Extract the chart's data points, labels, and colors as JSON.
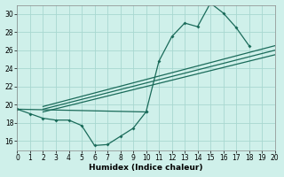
{
  "xlabel": "Humidex (Indice chaleur)",
  "bg_color": "#cff0ea",
  "grid_color": "#a8d8d0",
  "line_color": "#1a6b5a",
  "xlim": [
    0,
    20
  ],
  "ylim": [
    15,
    31
  ],
  "xticks": [
    0,
    1,
    2,
    3,
    4,
    5,
    6,
    7,
    8,
    9,
    10,
    11,
    12,
    13,
    14,
    15,
    16,
    17,
    18,
    19,
    20
  ],
  "yticks": [
    16,
    18,
    20,
    22,
    24,
    26,
    28,
    30
  ],
  "curve1_x": [
    0,
    1,
    2,
    3,
    4,
    5,
    6,
    7,
    8,
    9,
    10
  ],
  "curve1_y": [
    19.5,
    19.0,
    18.5,
    18.3,
    18.3,
    17.7,
    15.5,
    15.6,
    16.5,
    17.4,
    19.2
  ],
  "curve2_x": [
    0,
    10,
    11,
    12,
    13,
    14,
    15,
    16,
    17,
    18
  ],
  "curve2_y": [
    19.5,
    19.2,
    24.8,
    27.5,
    29.0,
    28.6,
    31.2,
    30.1,
    28.5,
    26.5
  ],
  "straight_lines": [
    {
      "x0": 2.0,
      "y0": 19.2,
      "x1": 20,
      "y1": 25.5
    },
    {
      "x0": 2.0,
      "y0": 19.5,
      "x1": 20,
      "y1": 26.0
    },
    {
      "x0": 2.0,
      "y0": 19.8,
      "x1": 20,
      "y1": 26.5
    }
  ]
}
